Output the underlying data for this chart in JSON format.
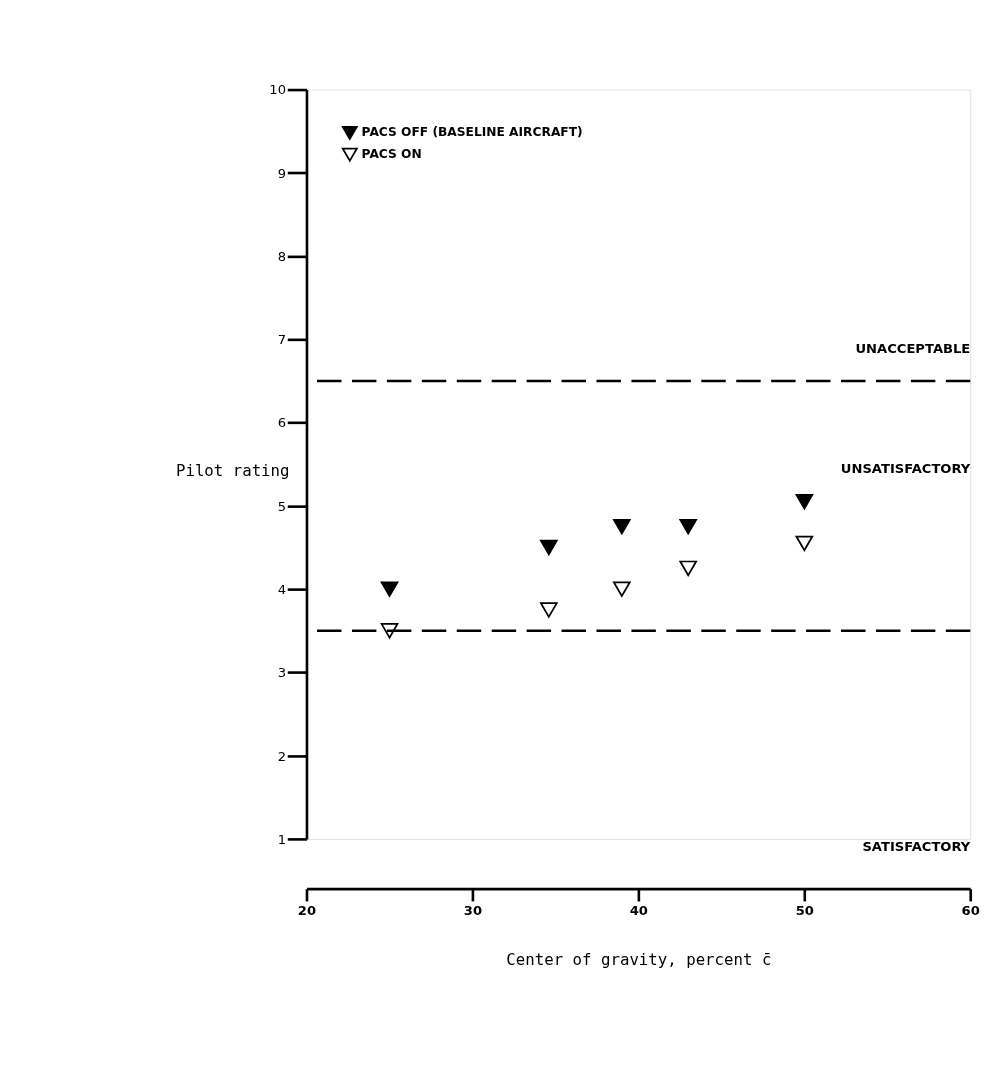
{
  "chart_data": {
    "type": "scatter",
    "xlabel": "Center of gravity, percent c̄",
    "ylabel": "Pilot rating",
    "xlim": [
      20,
      60
    ],
    "xticks": [
      20,
      30,
      40,
      50,
      60
    ],
    "ylim": [
      1,
      10
    ],
    "yticks": [
      1,
      2,
      3,
      4,
      5,
      6,
      7,
      8,
      9,
      10
    ],
    "marker": "triangle",
    "legend": "top left",
    "grid": false,
    "x": [
      25,
      34.6,
      39,
      43,
      50
    ],
    "series": [
      {
        "name": "PACS OFF (BASELINE AIRCRAFT)",
        "color": "#000000",
        "values": [
          4.0,
          4.5,
          4.75,
          4.75,
          5.05
        ]
      },
      {
        "name": "PACS ON",
        "color": "#ffffff",
        "values": [
          3.5,
          3.75,
          4.0,
          4.25,
          4.55
        ]
      }
    ],
    "ref_lines": [
      {
        "axis": "y",
        "value": 6.5,
        "line_style": "dashed",
        "color": "#000000"
      },
      {
        "axis": "y",
        "value": 3.5,
        "line_style": "dashed",
        "color": "#000000"
      }
    ],
    "annotations": [
      "UNACCEPTABLE",
      "UNSATISFACTORY",
      "SATISFACTORY"
    ]
  }
}
